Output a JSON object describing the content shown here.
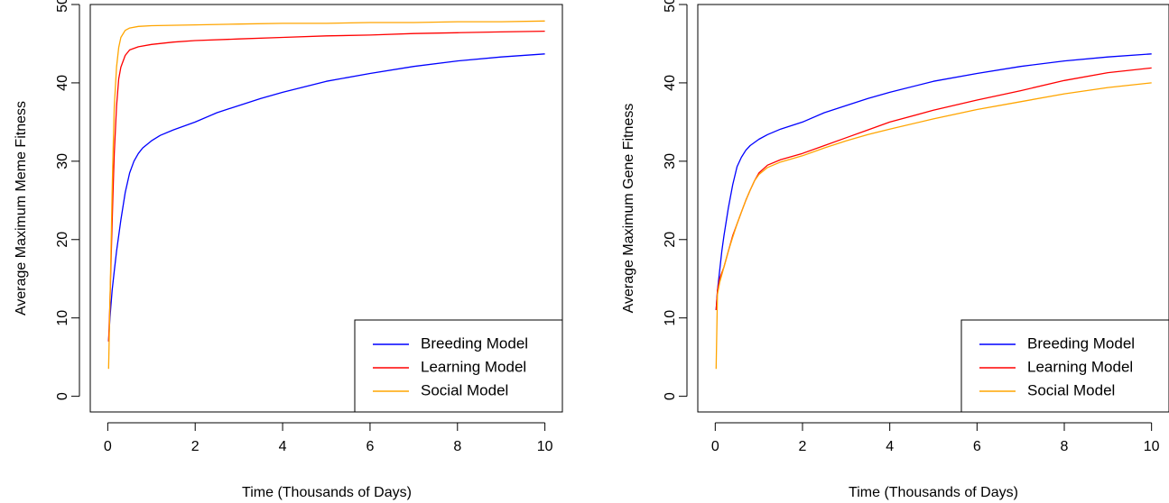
{
  "chart_data": [
    {
      "type": "line",
      "title": "",
      "xlabel": "Time (Thousands of Days)",
      "ylabel": "Average Maximum Meme Fitness",
      "xlim": [
        -0.4,
        10.4
      ],
      "ylim": [
        -2,
        50
      ],
      "xticks": [
        0,
        2,
        4,
        6,
        8,
        10
      ],
      "yticks": [
        0,
        10,
        20,
        30,
        40,
        50
      ],
      "grid": false,
      "legend_position": "bottom-right",
      "series": [
        {
          "name": "Breeding Model",
          "color": "#0000ff",
          "x": [
            0.02,
            0.05,
            0.1,
            0.15,
            0.2,
            0.3,
            0.4,
            0.5,
            0.6,
            0.7,
            0.8,
            1.0,
            1.2,
            1.5,
            2,
            2.5,
            3,
            3.5,
            4,
            5,
            6,
            7,
            8,
            9,
            10
          ],
          "y": [
            7,
            10,
            13.5,
            16,
            18.5,
            22.5,
            26,
            28.5,
            30,
            31,
            31.7,
            32.6,
            33.3,
            34,
            35,
            36.2,
            37.1,
            38,
            38.8,
            40.2,
            41.2,
            42.1,
            42.8,
            43.3,
            43.7
          ]
        },
        {
          "name": "Learning Model",
          "color": "#ff0000",
          "x": [
            0.02,
            0.05,
            0.08,
            0.1,
            0.12,
            0.15,
            0.2,
            0.25,
            0.3,
            0.4,
            0.5,
            0.7,
            1.0,
            1.5,
            2,
            3,
            4,
            5,
            6,
            7,
            8,
            9,
            10
          ],
          "y": [
            7,
            12,
            18,
            22,
            26,
            31,
            37,
            40.5,
            42,
            43.5,
            44.2,
            44.6,
            44.9,
            45.2,
            45.4,
            45.6,
            45.8,
            46,
            46.1,
            46.3,
            46.4,
            46.5,
            46.6
          ]
        },
        {
          "name": "Social Model",
          "color": "#ffa500",
          "x": [
            0.02,
            0.05,
            0.08,
            0.1,
            0.12,
            0.15,
            0.2,
            0.25,
            0.3,
            0.4,
            0.5,
            0.7,
            1.0,
            2,
            3,
            4,
            5,
            6,
            7,
            8,
            9,
            10
          ],
          "y": [
            3.5,
            12,
            20,
            26,
            31,
            37,
            42,
            44.5,
            45.8,
            46.7,
            47,
            47.2,
            47.3,
            47.4,
            47.5,
            47.6,
            47.6,
            47.7,
            47.7,
            47.8,
            47.8,
            47.9
          ]
        }
      ]
    },
    {
      "type": "line",
      "title": "",
      "xlabel": "Time (Thousands of Days)",
      "ylabel": "Average Maximum Gene Fitness",
      "xlim": [
        -0.4,
        10.4
      ],
      "ylim": [
        -2,
        50
      ],
      "xticks": [
        0,
        2,
        4,
        6,
        8,
        10
      ],
      "yticks": [
        0,
        10,
        20,
        30,
        40,
        50
      ],
      "grid": false,
      "legend_position": "bottom-right",
      "series": [
        {
          "name": "Breeding Model",
          "color": "#0000ff",
          "x": [
            0.02,
            0.05,
            0.1,
            0.15,
            0.2,
            0.3,
            0.4,
            0.5,
            0.6,
            0.7,
            0.8,
            1.0,
            1.2,
            1.5,
            2,
            2.5,
            3,
            3.5,
            4,
            5,
            6,
            7,
            8,
            9,
            10
          ],
          "y": [
            11,
            13.5,
            16,
            18.5,
            20.5,
            24,
            27,
            29.3,
            30.5,
            31.4,
            32,
            32.8,
            33.4,
            34.1,
            35,
            36.2,
            37.1,
            38,
            38.8,
            40.2,
            41.2,
            42.1,
            42.8,
            43.3,
            43.7
          ]
        },
        {
          "name": "Learning Model",
          "color": "#ff0000",
          "x": [
            0.02,
            0.05,
            0.1,
            0.2,
            0.3,
            0.4,
            0.5,
            0.6,
            0.7,
            0.8,
            0.9,
            1.0,
            1.2,
            1.5,
            2,
            2.5,
            3,
            3.5,
            4,
            5,
            6,
            7,
            8,
            9,
            10
          ],
          "y": [
            11,
            13.5,
            15,
            16.5,
            18.5,
            20.5,
            22,
            23.5,
            25,
            26.3,
            27.5,
            28.5,
            29.5,
            30.2,
            31,
            32,
            33,
            34,
            35,
            36.5,
            37.8,
            39,
            40.3,
            41.3,
            41.9
          ]
        },
        {
          "name": "Social Model",
          "color": "#ffa500",
          "x": [
            0.02,
            0.05,
            0.1,
            0.2,
            0.3,
            0.4,
            0.5,
            0.6,
            0.7,
            0.8,
            0.9,
            1.0,
            1.2,
            1.5,
            2,
            2.5,
            3,
            3.5,
            4,
            5,
            6,
            7,
            8,
            9,
            10
          ],
          "y": [
            3.5,
            13,
            14.5,
            16.5,
            18.5,
            20.3,
            22,
            23.5,
            25,
            26.3,
            27.5,
            28.3,
            29.2,
            29.9,
            30.7,
            31.7,
            32.6,
            33.4,
            34.1,
            35.4,
            36.6,
            37.6,
            38.6,
            39.4,
            40
          ]
        }
      ]
    }
  ]
}
